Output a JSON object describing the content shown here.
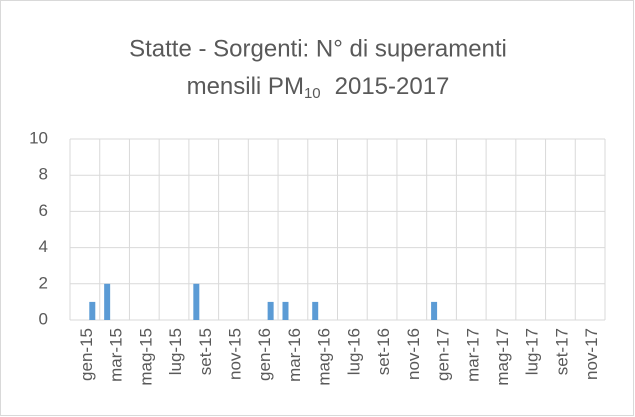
{
  "chart_data": {
    "type": "bar",
    "title_line1": "Statte - Sorgenti: N° di superamenti",
    "title_line2_a": "mensili PM",
    "title_line2_sub": "10",
    "title_line2_b": "2015-2017",
    "categories": [
      "gen-15",
      null,
      "mar-15",
      null,
      "mag-15",
      null,
      "lug-15",
      null,
      "set-15",
      null,
      "nov-15",
      null,
      "gen-16",
      null,
      "mar-16",
      null,
      "mag-16",
      null,
      "lug-16",
      null,
      "set-16",
      null,
      "nov-16",
      null,
      "gen-17",
      null,
      "mar-17",
      null,
      "mag-17",
      null,
      "lug-17",
      null,
      "set-17",
      null,
      "nov-17",
      null
    ],
    "values": [
      0,
      1,
      2,
      0,
      0,
      0,
      0,
      0,
      2,
      0,
      0,
      0,
      0,
      1,
      1,
      0,
      1,
      0,
      0,
      0,
      0,
      0,
      0,
      0,
      1,
      0,
      0,
      0,
      0,
      0,
      0,
      0,
      0,
      0,
      0,
      0
    ],
    "color": "#5b9bd5",
    "ylim": [
      0,
      10
    ],
    "yticks": [
      0,
      2,
      4,
      6,
      8,
      10
    ],
    "grid": true
  }
}
